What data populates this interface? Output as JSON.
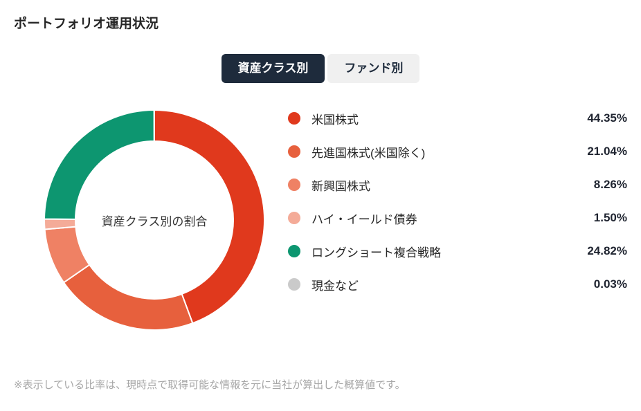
{
  "page": {
    "title": "ポートフォリオ運用状況",
    "footnote": "※表示している比率は、現時点で取得可能な情報を元に当社が算出した概算値です。"
  },
  "tabs": [
    {
      "label": "資産クラス別",
      "active": true
    },
    {
      "label": "ファンド別",
      "active": false
    }
  ],
  "chart_data": {
    "type": "pie",
    "donut": true,
    "title": "資産クラス別の割合",
    "center_label": "資産クラス別の割合",
    "start_angle_deg": 0,
    "direction": "clockwise",
    "legend_position": "right",
    "categories": [
      "米国株式",
      "先進国株式(米国除く)",
      "新興国株式",
      "ハイ・イールド債券",
      "ロングショート複合戦略",
      "現金など"
    ],
    "values": [
      44.35,
      21.04,
      8.26,
      1.5,
      24.82,
      0.03
    ],
    "value_labels": [
      "44.35%",
      "21.04%",
      "8.26%",
      "1.50%",
      "24.82%",
      "0.03%"
    ],
    "colors": [
      "#e0391d",
      "#e7603d",
      "#ef8164",
      "#f4ab98",
      "#0d9670",
      "#cacaca"
    ],
    "segment_border_color": "#ffffff"
  },
  "colors": {
    "tab_active_bg": "#1e2b3c",
    "tab_active_text": "#ffffff",
    "tab_inactive_bg": "#f0f0f0",
    "tab_inactive_text": "#1e2b3c",
    "title_text": "#262626",
    "footnote_text": "#a6a6a6"
  }
}
